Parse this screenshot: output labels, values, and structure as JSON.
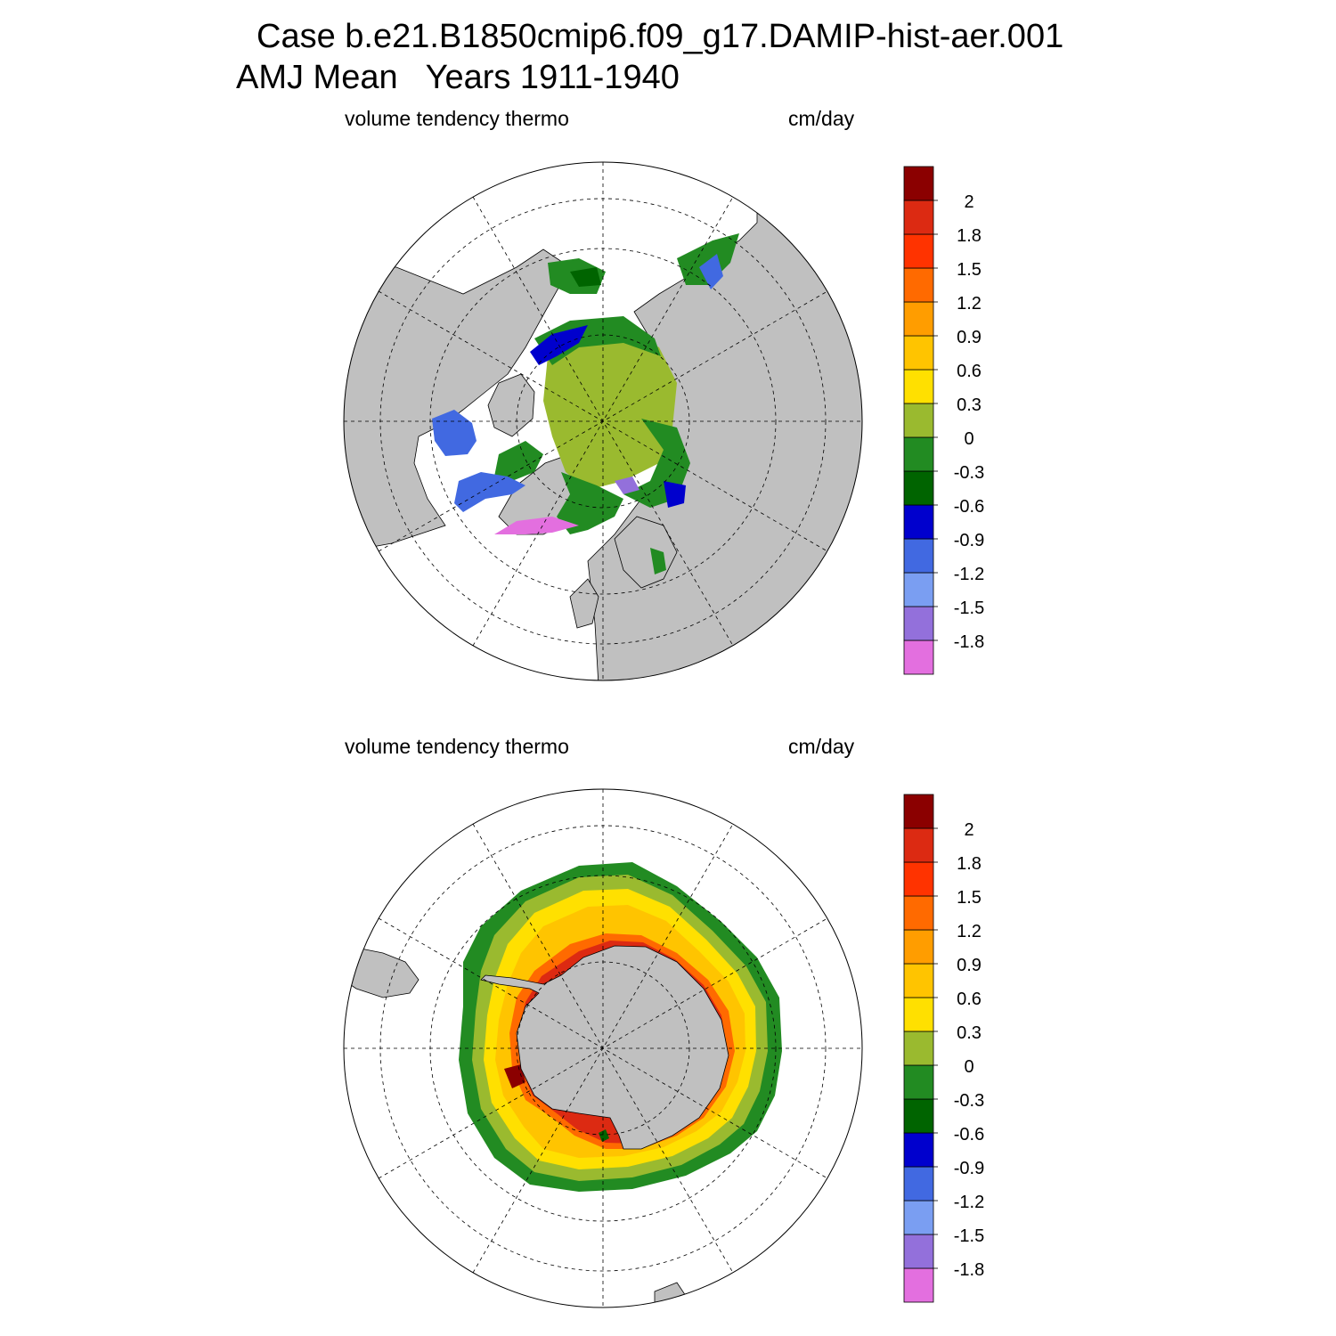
{
  "header": {
    "title_line1": "Case b.e21.B1850cmip6.f09_g17.DAMIP-hist-aer.001",
    "title_line2": "AMJ Mean   Years 1911-1940"
  },
  "panels": [
    {
      "id": "north",
      "left_label": "volume tendency thermo",
      "right_label": "cm/day"
    },
    {
      "id": "south",
      "left_label": "volume tendency thermo",
      "right_label": "cm/day"
    }
  ],
  "colorbar": {
    "colors": [
      "#e36fdf",
      "#9370db",
      "#7a9ef2",
      "#4169e1",
      "#0000cd",
      "#006400",
      "#228b22",
      "#9aba2f",
      "#ffe000",
      "#ffc400",
      "#ff9d00",
      "#ff6a00",
      "#ff3300",
      "#dc2a12",
      "#8b0000"
    ],
    "labels": [
      "-1.8",
      "-1.5",
      "-1.2",
      "-0.9",
      "-0.6",
      "-0.3",
      "0",
      "0.3",
      "0.6",
      "0.9",
      "1.2",
      "1.5",
      "1.8",
      "2"
    ]
  }
}
